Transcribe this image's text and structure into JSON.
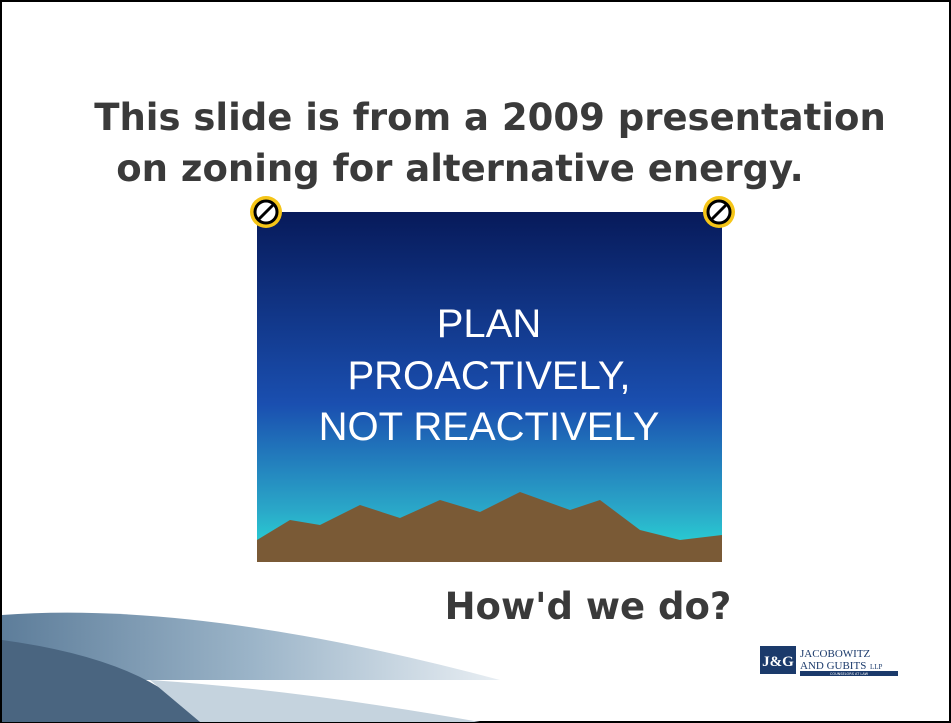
{
  "slide": {
    "title_line1": "This slide is from a 2009 presentation",
    "title_line2": "on zoning for alternative energy.",
    "inner_slide": {
      "line1": "PLAN",
      "line2": "PROACTIVELY,",
      "line3": "NOT REACTIVELY"
    },
    "question": "How'd we do?",
    "logo": {
      "mark": "J&G",
      "name_line1": "JACOBOWITZ",
      "name_line2": "AND GUBITS",
      "suffix": "LLP",
      "tagline": "COUNSELORS AT LAW"
    }
  }
}
